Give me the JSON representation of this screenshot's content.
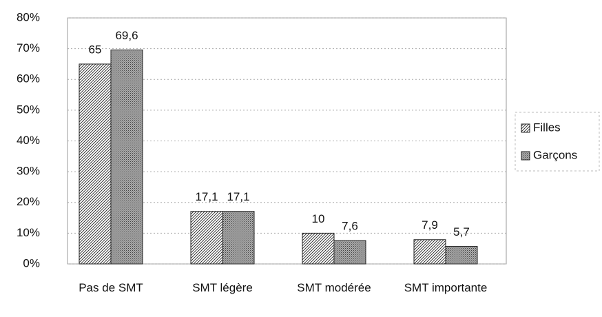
{
  "chart_data": {
    "type": "bar",
    "categories": [
      "Pas de SMT",
      "SMT légère",
      "SMT modérée",
      "SMT importante"
    ],
    "series": [
      {
        "name": "Filles",
        "color": "#ffffff",
        "values": [
          65,
          17.1,
          10,
          7.9
        ],
        "value_labels": [
          "65",
          "17,1",
          "10",
          "7,9"
        ]
      },
      {
        "name": "Garçons",
        "color": "#a8a8a8",
        "values": [
          69.6,
          17.1,
          7.6,
          5.7
        ],
        "value_labels": [
          "69,6",
          "17,1",
          "7,6",
          "5,7"
        ]
      }
    ],
    "ylim": [
      0,
      80
    ],
    "yticks": [
      {
        "value": 0,
        "label": "0%"
      },
      {
        "value": 10,
        "label": "10%"
      },
      {
        "value": 20,
        "label": "20%"
      },
      {
        "value": 30,
        "label": "30%"
      },
      {
        "value": 40,
        "label": "40%"
      },
      {
        "value": 50,
        "label": "50%"
      },
      {
        "value": 60,
        "label": "60%"
      },
      {
        "value": 70,
        "label": "70%"
      },
      {
        "value": 80,
        "label": "80%"
      }
    ],
    "grid": true,
    "legend": "right"
  }
}
